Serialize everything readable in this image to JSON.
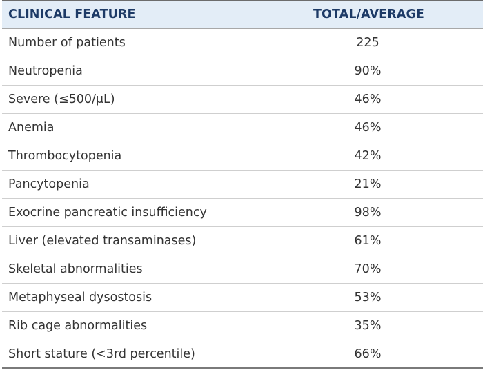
{
  "table": {
    "header": {
      "feature": "CLINICAL FEATURE",
      "value": "TOTAL/AVERAGE"
    },
    "rows": [
      {
        "feature": "Number of patients",
        "value": "225"
      },
      {
        "feature": "Neutropenia",
        "value": "90%"
      },
      {
        "feature": "Severe (≤500/μL)",
        "value": "46%"
      },
      {
        "feature": "Anemia",
        "value": "46%"
      },
      {
        "feature": "Thrombocytopenia",
        "value": "42%"
      },
      {
        "feature": "Pancytopenia",
        "value": "21%"
      },
      {
        "feature": "Exocrine pancreatic insufficiency",
        "value": "98%"
      },
      {
        "feature": "Liver (elevated transaminases)",
        "value": "61%"
      },
      {
        "feature": "Skeletal abnormalities",
        "value": "70%"
      },
      {
        "feature": "Metaphyseal dysostosis",
        "value": "53%"
      },
      {
        "feature": "Rib cage abnormalities",
        "value": "35%"
      },
      {
        "feature": "Short stature (<3rd percentile)",
        "value": "66%"
      }
    ],
    "colors": {
      "header_bg": "#e3edf7",
      "header_text": "#1d3a66",
      "body_text": "#333333"
    }
  }
}
